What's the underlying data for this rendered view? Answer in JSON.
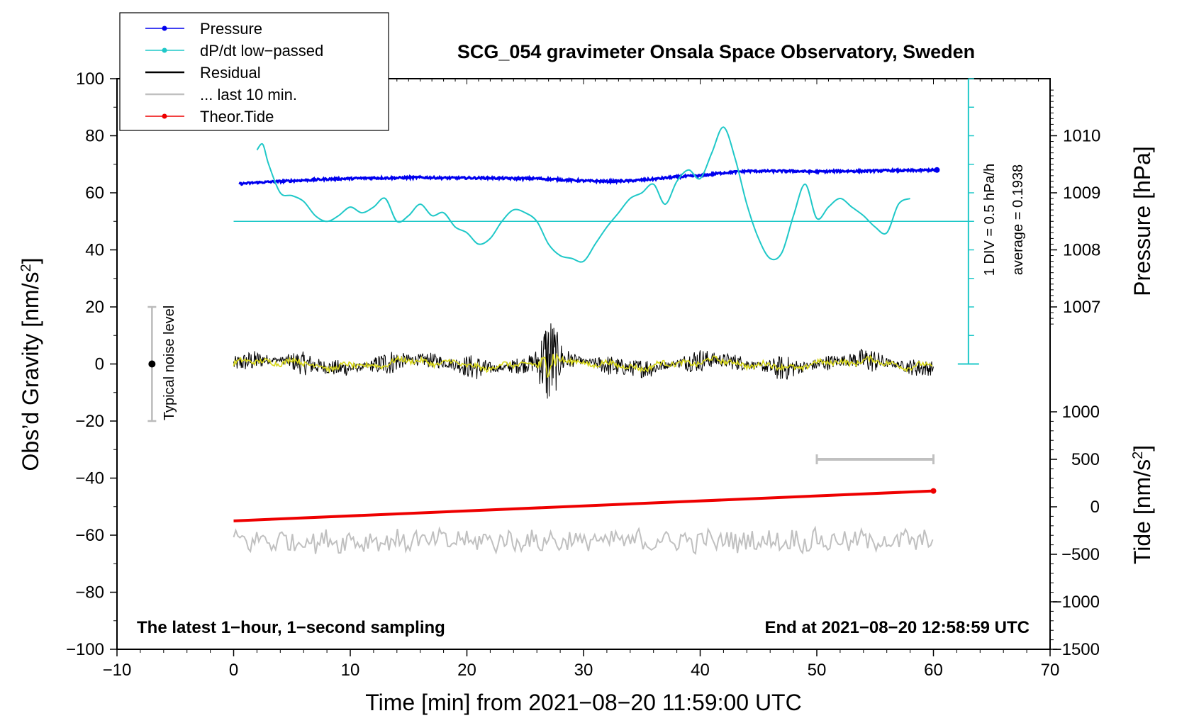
{
  "chart_data": {
    "type": "line",
    "title": "SCG_054 gravimeter Onsala Space Observatory, Sweden",
    "xlabel": "Time [min] from 2021−08−20 11:59:00 UTC",
    "ylabel_left": "Obs’d Gravity [nm/s",
    "ylabel_left_sup": "2",
    "ylabel_left_end": "]",
    "ylabel_right_pressure": "Pressure [hPa]",
    "ylabel_right_tide": "Tide [nm/s",
    "ylabel_right_tide_sup": "2",
    "ylabel_right_tide_end": "]",
    "xlim": [
      -10,
      70
    ],
    "ylim_left": [
      -100,
      100
    ],
    "x_ticks": [
      -10,
      0,
      10,
      20,
      30,
      40,
      50,
      60,
      70
    ],
    "x_tick_labels": [
      "−10",
      "0",
      "10",
      "20",
      "30",
      "40",
      "50",
      "60",
      "70"
    ],
    "y_ticks_left": [
      100,
      80,
      60,
      40,
      20,
      0,
      -20,
      -40,
      -60,
      -80,
      -100
    ],
    "y_tick_labels_left": [
      "100",
      "80",
      "60",
      "40",
      "20",
      "0",
      "−20",
      "−40",
      "−60",
      "−80",
      "−100"
    ],
    "pressure_ticks": [
      1010,
      1009,
      1008,
      1007
    ],
    "pressure_tick_labels": [
      "1010",
      "1009",
      "1008",
      "1007"
    ],
    "tide_ticks": [
      1000,
      500,
      0,
      -500,
      -1000,
      -1500
    ],
    "tide_tick_labels": [
      "1000",
      "500",
      "0",
      "−500",
      "−1000",
      "−1500"
    ],
    "legend": {
      "position": "top-left",
      "entries": [
        {
          "label": "Pressure",
          "color": "#0000ee",
          "marker": true
        },
        {
          "label": "dP/dt low−passed",
          "color": "#1fc8c8",
          "marker": true
        },
        {
          "label": "Residual",
          "color": "#000000",
          "marker": false
        },
        {
          "label": "... last 10 min.",
          "color": "#c0c0c0",
          "marker": false
        },
        {
          "label": "Theor.Tide",
          "color": "#ee0000",
          "marker": true
        }
      ]
    },
    "annotations": {
      "bottom_left": "The latest 1−hour, 1−second sampling",
      "bottom_right": "End at 2021−08−20 12:58:59 UTC",
      "noise_label": "Typical noise level",
      "noise_range": [
        -20,
        20
      ],
      "noise_x": -7,
      "div_label": "1 DIV = 0.5 hPa/h",
      "average_label": "average = 0.1938",
      "last10_range": [
        50,
        60
      ]
    },
    "series": [
      {
        "name": "Pressure",
        "unit": "hPa",
        "color": "#0000ee",
        "x": [
          0,
          2,
          4,
          6,
          8,
          10,
          12,
          14,
          16,
          18,
          20,
          22,
          24,
          26,
          28,
          30,
          32,
          34,
          36,
          38,
          40,
          42,
          44,
          46,
          48,
          50,
          52,
          54,
          56,
          58,
          60
        ],
        "values": [
          1009.15,
          1009.18,
          1009.2,
          1009.22,
          1009.24,
          1009.25,
          1009.26,
          1009.26,
          1009.27,
          1009.26,
          1009.26,
          1009.26,
          1009.25,
          1009.25,
          1009.23,
          1009.21,
          1009.2,
          1009.21,
          1009.24,
          1009.28,
          1009.3,
          1009.35,
          1009.38,
          1009.38,
          1009.38,
          1009.37,
          1009.38,
          1009.38,
          1009.39,
          1009.39,
          1009.4
        ]
      },
      {
        "name": "dP/dt low-passed",
        "unit": "nm/s2-scale",
        "color": "#1fc8c8",
        "baseline": 50,
        "x": [
          2,
          2.5,
          3,
          4,
          5,
          6,
          7,
          8,
          9,
          10,
          11,
          12,
          13,
          14,
          15,
          16,
          17,
          18,
          19,
          20,
          21,
          22,
          23,
          24,
          25,
          26,
          27,
          28,
          29,
          30,
          31,
          32,
          33,
          34,
          35,
          36,
          37,
          38,
          39,
          40,
          41,
          42,
          43,
          44,
          45,
          46,
          47,
          48,
          49,
          50,
          51,
          52,
          53,
          54,
          55,
          56,
          57,
          58
        ],
        "values": [
          75,
          77,
          70,
          60,
          59,
          57,
          52,
          50,
          52,
          55,
          53,
          55,
          58,
          50,
          52,
          56,
          52,
          53,
          48,
          46,
          42,
          44,
          50,
          54,
          53,
          50,
          42,
          38,
          37,
          36,
          42,
          48,
          53,
          58,
          60,
          63,
          56,
          64,
          68,
          65,
          74,
          83,
          72,
          56,
          44,
          37,
          39,
          52,
          63,
          51,
          55,
          58,
          55,
          52,
          48,
          46,
          56,
          58
        ]
      },
      {
        "name": "Residual",
        "unit": "nm/s2",
        "color": "#000000",
        "x_range": [
          0,
          60
        ],
        "mean": 0,
        "amplitude": 4.5,
        "burst_center": 27,
        "burst_amplitude": 14
      },
      {
        "name": "Residual smoothed",
        "unit": "nm/s2",
        "color": "#d8d81a",
        "x_range": [
          0,
          60
        ],
        "amplitude": 1.5
      },
      {
        "name": "... last 10 min.",
        "unit": "nm/s2",
        "color": "#c0c0c0",
        "x_range": [
          0,
          60
        ],
        "offset": -62,
        "amplitude": 3.5
      },
      {
        "name": "Theor.Tide",
        "unit": "nm/s2",
        "color": "#ee0000",
        "x": [
          0,
          60
        ],
        "values": [
          -55,
          -44.5
        ]
      }
    ]
  }
}
